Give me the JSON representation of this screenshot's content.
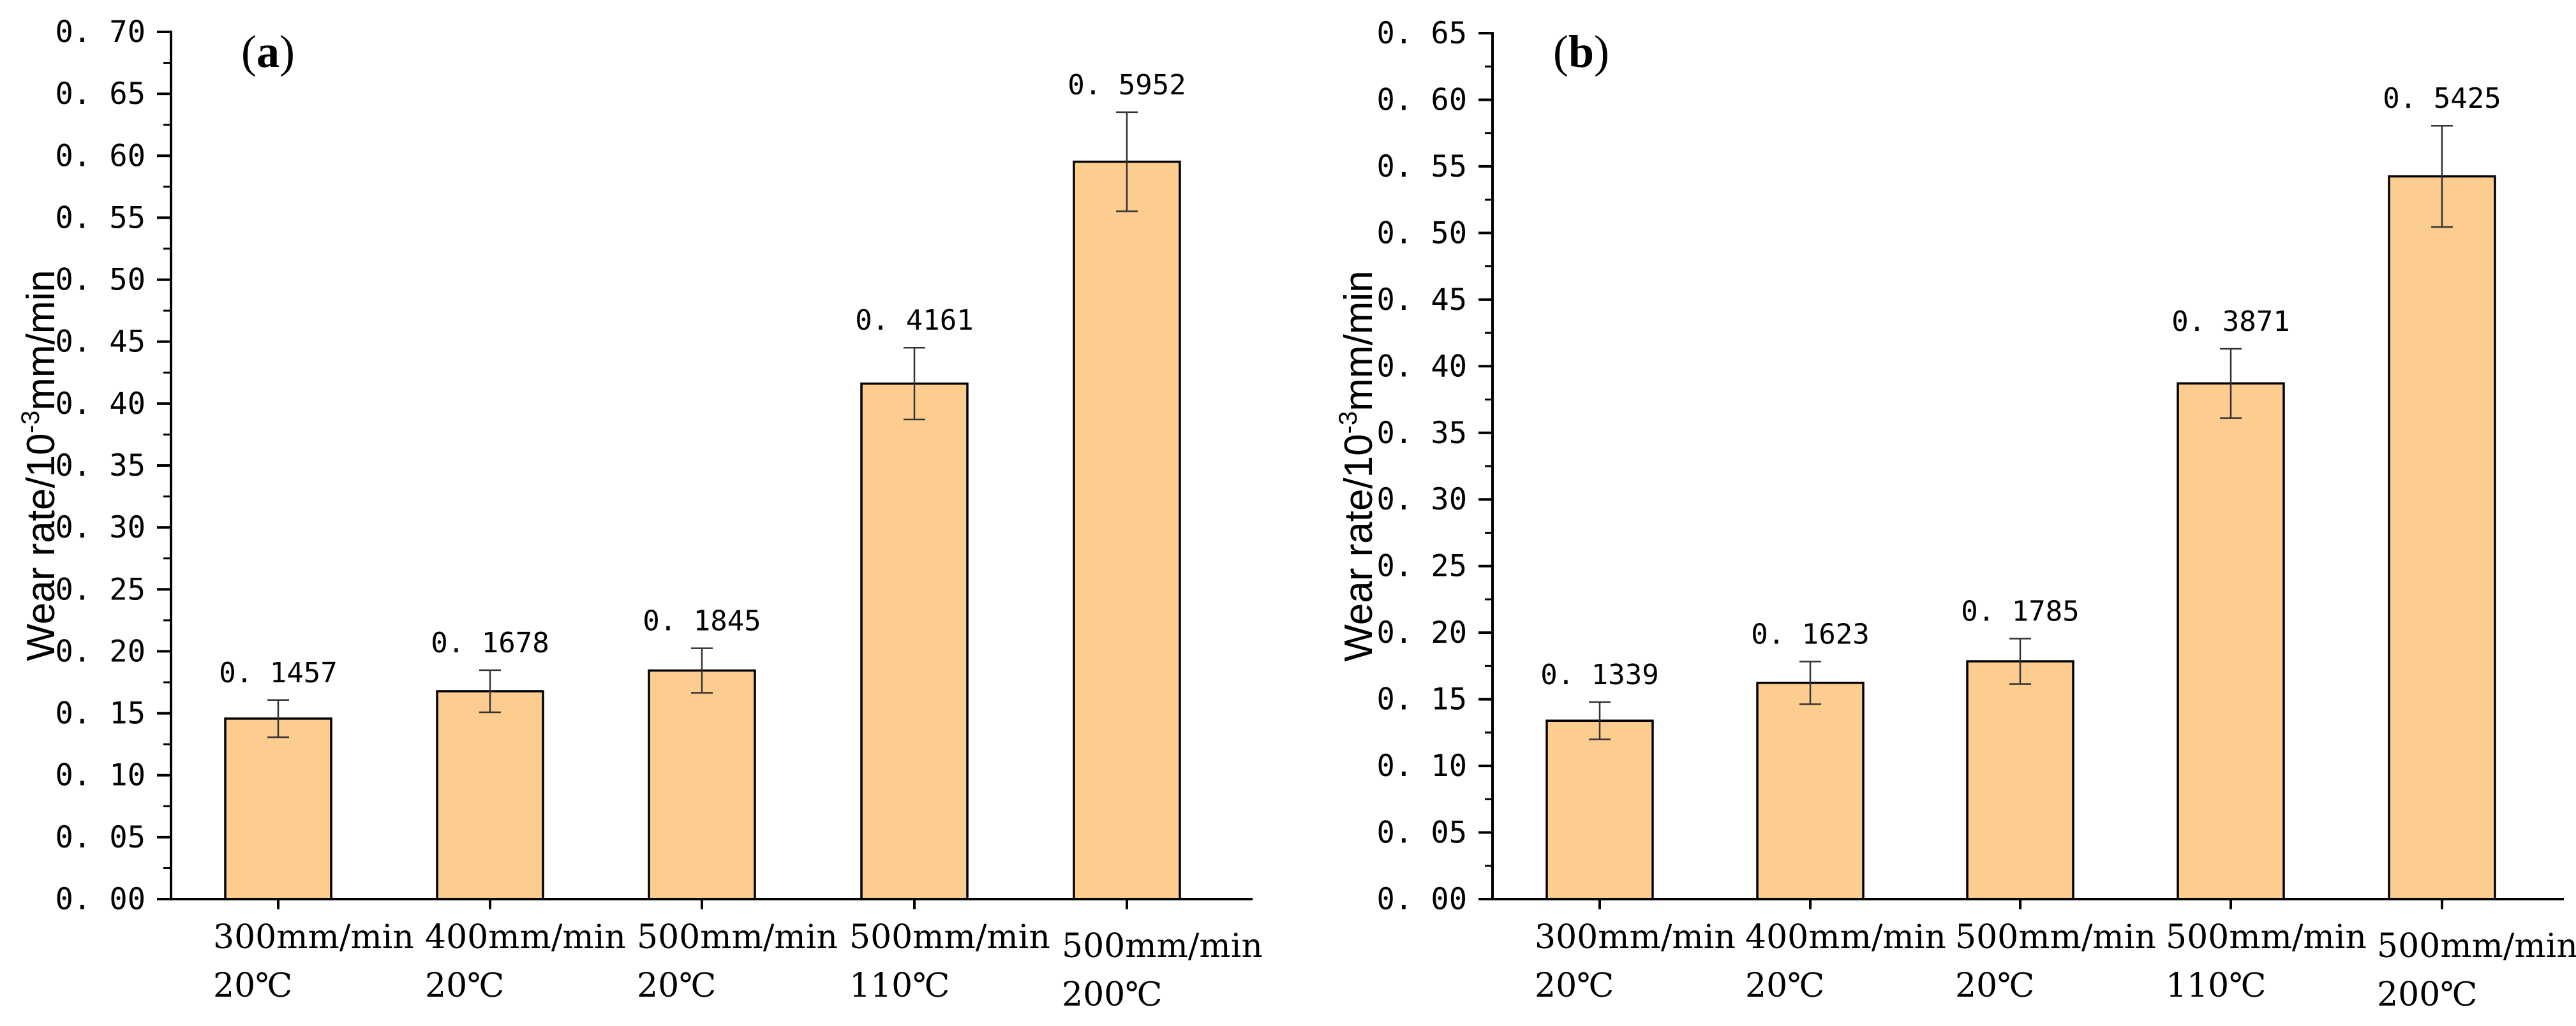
{
  "figure": {
    "bar_color": "#FDCC8F",
    "bar_stroke": "#000000"
  },
  "chart_data": [
    {
      "panel": "(a)",
      "panel_letter": "a",
      "type": "bar",
      "title": "",
      "xlabel": "",
      "ylabel": "Wear rate/10",
      "ylabel_sup": "-3",
      "ylabel_tail": "mm/min",
      "ylim": [
        0,
        0.7
      ],
      "ytick_step": 0.05,
      "ytick_labels": [
        "0. 00",
        "0. 05",
        "0. 10",
        "0. 15",
        "0. 20",
        "0. 25",
        "0. 30",
        "0. 35",
        "0. 40",
        "0. 45",
        "0. 50",
        "0. 55",
        "0. 60",
        "0. 65",
        "0. 70"
      ],
      "categories": [
        {
          "line1": "300mm/min",
          "line2": "20℃"
        },
        {
          "line1": "400mm/min",
          "line2": "20℃"
        },
        {
          "line1": "500mm/min",
          "line2": "20℃"
        },
        {
          "line1": "500mm/min",
          "line2": "110℃"
        },
        {
          "line1": "500mm/min",
          "line2": "200℃"
        }
      ],
      "values": [
        0.1457,
        0.1678,
        0.1845,
        0.4161,
        0.5952
      ],
      "value_labels": [
        "0. 1457",
        "0. 1678",
        "0. 1845",
        "0. 4161",
        "0. 5952"
      ],
      "errors": [
        0.015,
        0.017,
        0.018,
        0.029,
        0.04
      ]
    },
    {
      "panel": "(b)",
      "panel_letter": "b",
      "type": "bar",
      "title": "",
      "xlabel": "",
      "ylabel": "Wear rate/10",
      "ylabel_sup": "-3",
      "ylabel_tail": "mm/min",
      "ylim": [
        0,
        0.65
      ],
      "ytick_step": 0.05,
      "ytick_labels": [
        "0. 00",
        "0. 05",
        "0. 10",
        "0. 15",
        "0. 20",
        "0. 25",
        "0. 30",
        "0. 35",
        "0. 40",
        "0. 45",
        "0. 50",
        "0. 55",
        "0. 60",
        "0. 65"
      ],
      "categories": [
        {
          "line1": "300mm/min",
          "line2": "20℃"
        },
        {
          "line1": "400mm/min",
          "line2": "20℃"
        },
        {
          "line1": "500mm/min",
          "line2": "20℃"
        },
        {
          "line1": "500mm/min",
          "line2": "110℃"
        },
        {
          "line1": "500mm/min",
          "line2": "200℃"
        }
      ],
      "values": [
        0.1339,
        0.1623,
        0.1785,
        0.3871,
        0.5425
      ],
      "value_labels": [
        "0. 1339",
        "0. 1623",
        "0. 1785",
        "0. 3871",
        "0. 5425"
      ],
      "errors": [
        0.014,
        0.016,
        0.017,
        0.026,
        0.038
      ]
    }
  ]
}
